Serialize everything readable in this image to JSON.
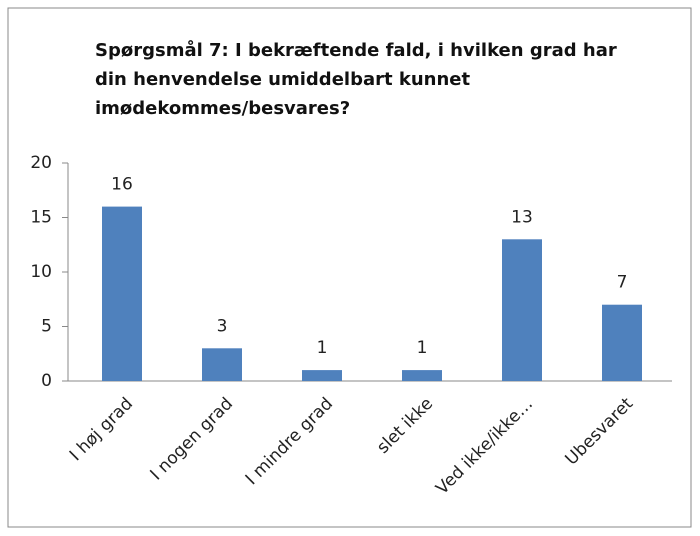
{
  "chart_data": {
    "type": "bar",
    "title": "Spørgsmål 7: I bekræftende fald, i hvilken grad har din henvendelse umiddelbart kunnet imødekommes/besvares?",
    "categories": [
      "I høj grad",
      "I nogen grad",
      "I mindre grad",
      "slet ikke",
      "Ved ikke/ikke…",
      "Ubesvaret"
    ],
    "values": [
      16,
      3,
      1,
      1,
      13,
      7
    ],
    "color": "#4f81bd",
    "ylim": [
      0,
      20
    ],
    "yticks": [
      0,
      5,
      10,
      15,
      20
    ],
    "grid": false
  }
}
